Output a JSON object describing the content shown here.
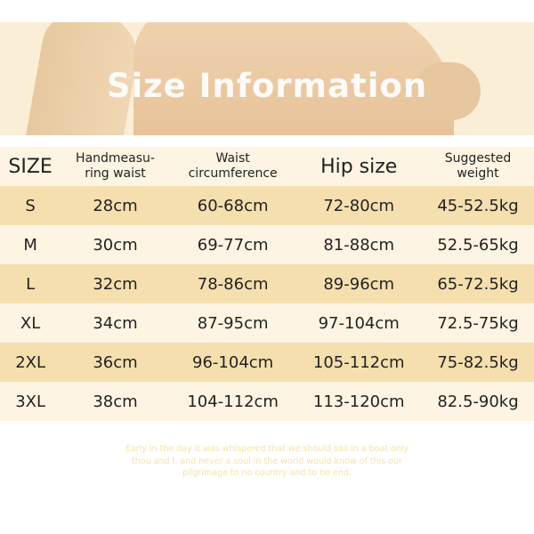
{
  "banner": {
    "title": "Size Information"
  },
  "table": {
    "headers": [
      "SIZE",
      "Handmeasu-\nring waist",
      "Waist\ncircumference",
      "Hip size",
      "Suggested\nweight"
    ],
    "rows": [
      [
        "S",
        "28cm",
        "60-68cm",
        "72-80cm",
        "45-52.5kg"
      ],
      [
        "M",
        "30cm",
        "69-77cm",
        "81-88cm",
        "52.5-65kg"
      ],
      [
        "L",
        "32cm",
        "78-86cm",
        "89-96cm",
        "65-72.5kg"
      ],
      [
        "XL",
        "34cm",
        "87-95cm",
        "97-104cm",
        "72.5-75kg"
      ],
      [
        "2XL",
        "36cm",
        "96-104cm",
        "105-112cm",
        "75-82.5kg"
      ],
      [
        "3XL",
        "38cm",
        "104-112cm",
        "113-120cm",
        "82.5-90kg"
      ]
    ]
  },
  "quote": "Early in the day it was whispered that we should sail in a boat only thou and I, and never a soul in the world would know of this our pilgrimage to no country and to no end.",
  "colors": {
    "row_dark": "#f5dfae",
    "row_light": "#fdf4e3",
    "quote": "#f4e3a8"
  }
}
